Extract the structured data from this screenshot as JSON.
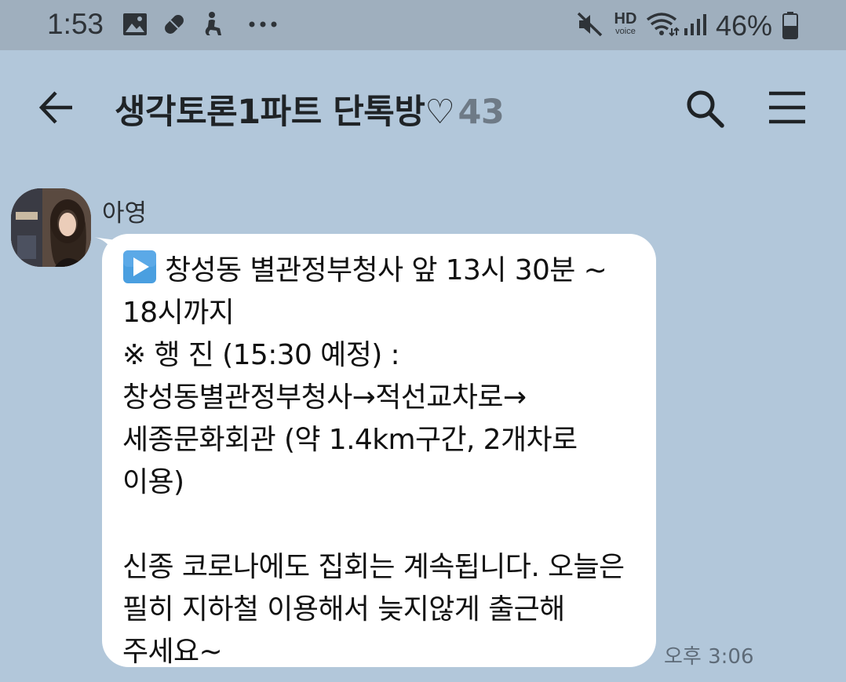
{
  "status_bar": {
    "time": "1:53",
    "battery": "46%",
    "icons": [
      "image-icon",
      "pill-icon",
      "accessibility-icon",
      "more-dots-icon",
      "mute-icon",
      "hd-voice-icon",
      "wifi-icon",
      "signal-icon",
      "battery-icon"
    ],
    "hd_label": "HD",
    "voice_label": "voice"
  },
  "header": {
    "title": "생각토론1파트 단톡방♡",
    "member_count": "43"
  },
  "message": {
    "sender": "아영",
    "first_line": "창성동 별관정부청사 앞 13시 30분 ~ 18시까지",
    "body": "※ 행 진 (15:30 예정) :\n창성동별관정부청사→적선교차로→세종문화회관 (약 1.4km구간, 2개차로 이용)\n\n신종 코로나에도 집회는 계속됩니다. 오늘은 필히 지하철 이용해서 늦지않게 출근해 주세요~",
    "time": "오후 3:06"
  },
  "colors": {
    "chat_background": "#b2c7da",
    "status_bar": "#9fafbe",
    "bubble": "#ffffff",
    "play_icon": "#4a9fe0"
  }
}
